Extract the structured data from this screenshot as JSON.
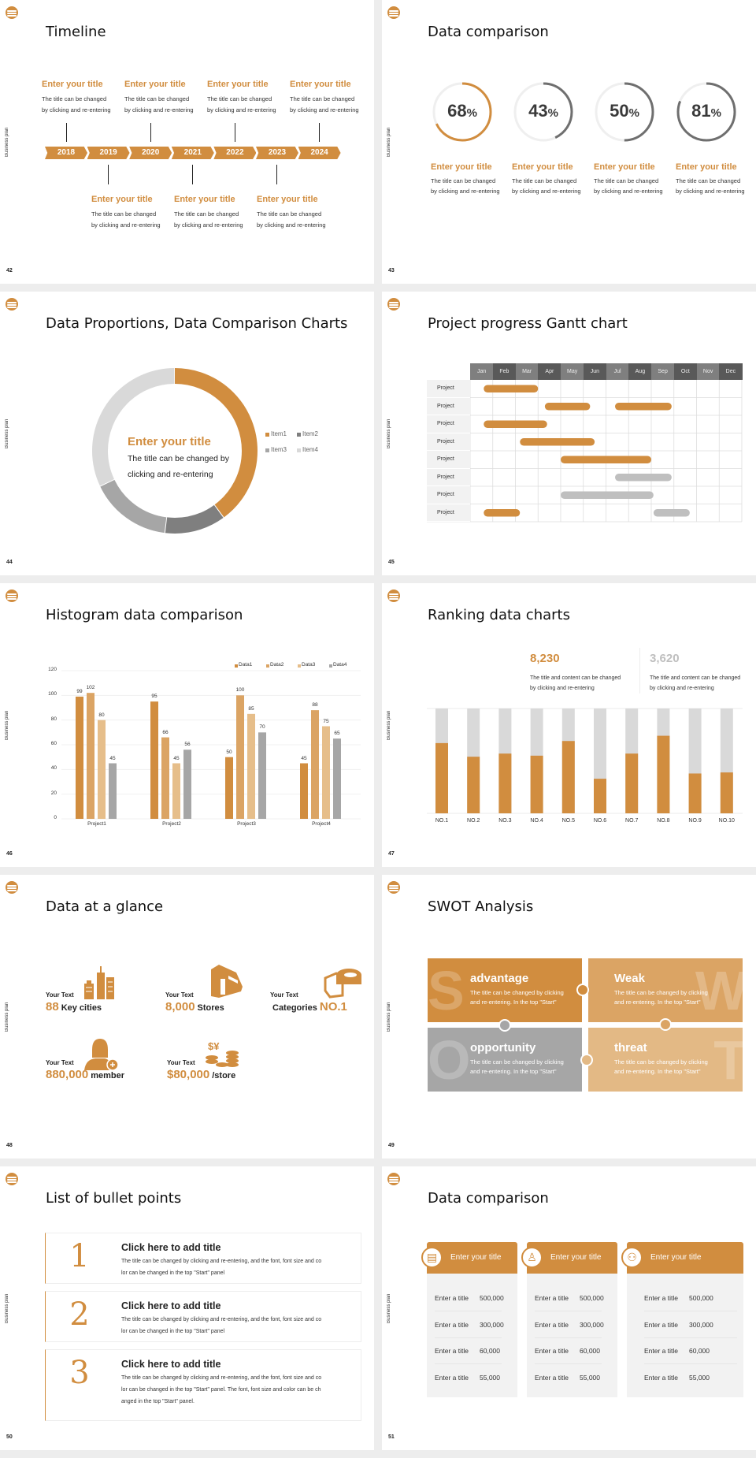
{
  "common": {
    "side_label": "Business plan",
    "accent": "#D18D3F",
    "gray": "#A6A6A6"
  },
  "slides": [
    {
      "page": "42",
      "title": "Timeline",
      "years": [
        "2018",
        "2019",
        "2020",
        "2021",
        "2022",
        "2023",
        "2024"
      ],
      "top_items": [
        {
          "title": "Enter your title",
          "line1": "The title can be changed",
          "line2": "by clicking and re-entering"
        },
        {
          "title": "Enter your title",
          "line1": "The title can be changed",
          "line2": "by clicking and re-entering"
        },
        {
          "title": "Enter your title",
          "line1": "The title can be changed",
          "line2": "by clicking and re-entering"
        },
        {
          "title": "Enter your title",
          "line1": "The title can be changed",
          "line2": "by clicking and re-entering"
        }
      ],
      "bottom_items": [
        {
          "title": "Enter your title",
          "line1": "The title can be changed",
          "line2": "by clicking and re-entering"
        },
        {
          "title": "Enter your title",
          "line1": "The title can be changed",
          "line2": "by clicking and re-entering"
        },
        {
          "title": "Enter your title",
          "line1": "The title can be changed",
          "line2": "by clicking and re-entering"
        }
      ]
    },
    {
      "page": "43",
      "title": "Data comparison",
      "gauges": [
        {
          "value": 68,
          "num": "68",
          "unit": "%",
          "color": "#D18D3F",
          "title": "Enter your title",
          "line1": "The title can be changed",
          "line2": "by clicking and re-entering"
        },
        {
          "value": 43,
          "num": "43",
          "unit": "%",
          "color": "#6F6F6F",
          "title": "Enter your title",
          "line1": "The title can be changed",
          "line2": "by clicking and re-entering"
        },
        {
          "value": 50,
          "num": "50",
          "unit": "%",
          "color": "#6F6F6F",
          "title": "Enter your title",
          "line1": "The title can be changed",
          "line2": "by clicking and re-entering"
        },
        {
          "value": 81,
          "num": "81",
          "unit": "%",
          "color": "#6F6F6F",
          "title": "Enter your title",
          "line1": "The title can be changed",
          "line2": "by clicking and re-entering"
        }
      ]
    },
    {
      "page": "44",
      "title": "Data Proportions, Data Comparison Charts",
      "center_title": "Enter your title",
      "center_line1": "The title can be changed by",
      "center_line2": "clicking and re-entering"
    },
    {
      "page": "45",
      "title": "Project progress Gantt chart"
    },
    {
      "page": "46",
      "title": "Histogram data comparison"
    },
    {
      "page": "47",
      "title": "Ranking data charts",
      "stats": [
        {
          "value": "8,230",
          "color": "#D18D3F",
          "line1": "The title and content can be changed",
          "line2": "by clicking and re-entering"
        },
        {
          "value": "3,620",
          "color": "#BFBFBF",
          "line1": "The title and content can be changed",
          "line2": "by clicking and re-entering"
        }
      ]
    },
    {
      "page": "48",
      "title": "Data at a glance",
      "items": [
        {
          "label": "Your Text",
          "num": "88",
          "unit": "Key cities",
          "icon": "buildings-icon"
        },
        {
          "label": "Your Text",
          "num": "8,000",
          "unit": "Stores",
          "icon": "store-icon"
        },
        {
          "label": "Your Text",
          "num": "NO.1",
          "unit": "Categories",
          "icon": "cheese-icon"
        },
        {
          "label": "Your Text",
          "num": "880,000",
          "unit": "member",
          "icon": "add-member-icon"
        },
        {
          "label": "Your Text",
          "num": "$80,000",
          "unit": "/store",
          "icon": "coins-icon"
        }
      ]
    },
    {
      "page": "49",
      "title": "SWOT Analysis",
      "quadrants": [
        {
          "letter": "S",
          "title": "advantage",
          "line1": "The title can be changed by clicking",
          "line2": "and re-entering. In the top \"Start\"",
          "color": "#D18D3F"
        },
        {
          "letter": "W",
          "title": "Weak",
          "line1": "The title can be changed by clicking",
          "line2": "and re-entering. In the top \"Start\"",
          "color": "#DBA464"
        },
        {
          "letter": "O",
          "title": "opportunity",
          "line1": "The title can be changed by clicking",
          "line2": "and re-entering. In the top \"Start\"",
          "color": "#A6A6A6"
        },
        {
          "letter": "T",
          "title": "threat",
          "line1": "The title can be changed by clicking",
          "line2": "and re-entering. In the top \"Start\"",
          "color": "#E3B985"
        }
      ]
    },
    {
      "page": "50",
      "title": "List of bullet points",
      "bullets": [
        {
          "num": "1",
          "title": "Click here to add title",
          "lines": [
            "The title can be changed by clicking and re-entering, and the font, font size and co",
            "lor can be changed in the top \"Start\" panel"
          ]
        },
        {
          "num": "2",
          "title": "Click here to add title",
          "lines": [
            "The title can be changed by clicking and re-entering, and the font, font size and co",
            "lor can be changed in the top \"Start\" panel"
          ]
        },
        {
          "num": "3",
          "title": "Click here to add title",
          "lines": [
            "The title can be changed by clicking and re-entering, and the font, font size and co",
            "lor can be changed in the top \"Start\" panel. The font, font size and color can be ch",
            "anged in the top \"Start\" panel."
          ]
        }
      ]
    },
    {
      "page": "51",
      "title": "Data comparison",
      "cards": [
        {
          "title": "Enter your title",
          "icon": "contact-card-icon",
          "rows": [
            [
              "Enter a title",
              "500,000"
            ],
            [
              "Enter a title",
              "300,000"
            ],
            [
              "Enter a title",
              "60,000"
            ],
            [
              "Enter a title",
              "55,000"
            ]
          ]
        },
        {
          "title": "Enter your title",
          "icon": "add-user-icon",
          "rows": [
            [
              "Enter a title",
              "500,000"
            ],
            [
              "Enter a title",
              "300,000"
            ],
            [
              "Enter a title",
              "60,000"
            ],
            [
              "Enter a title",
              "55,000"
            ]
          ]
        },
        {
          "title": "Enter your title",
          "icon": "users-icon",
          "rows": [
            [
              "Enter a title",
              "500,000"
            ],
            [
              "Enter a title",
              "300,000"
            ],
            [
              "Enter a title",
              "60,000"
            ],
            [
              "Enter a title",
              "55,000"
            ]
          ]
        }
      ]
    }
  ],
  "chart_data": [
    {
      "type": "pie",
      "donut": true,
      "categories": [
        "Item1",
        "Item2",
        "Item3",
        "Item4"
      ],
      "values": [
        40,
        12,
        16,
        32
      ],
      "colors": [
        "#D18D3F",
        "#7F7F7F",
        "#A6A6A6",
        "#D9D9D9"
      ],
      "legend": "right"
    },
    {
      "type": "bar",
      "subtype": "gantt",
      "categories": [
        "Jan",
        "Feb",
        "Mar",
        "Apr",
        "May",
        "Jun",
        "Jul",
        "Aug",
        "Sep",
        "Oct",
        "Nov",
        "Dec"
      ],
      "rows": [
        "Project",
        "Project",
        "Project",
        "Project",
        "Project",
        "Project",
        "Project",
        "Project"
      ],
      "tasks": [
        {
          "row": 0,
          "start": 0.6,
          "end": 3.0,
          "status": "active"
        },
        {
          "row": 1,
          "start": 3.3,
          "end": 5.3,
          "status": "active"
        },
        {
          "row": 1,
          "start": 6.4,
          "end": 8.9,
          "status": "active"
        },
        {
          "row": 2,
          "start": 0.6,
          "end": 3.4,
          "status": "active"
        },
        {
          "row": 3,
          "start": 2.2,
          "end": 5.5,
          "status": "active"
        },
        {
          "row": 4,
          "start": 4.0,
          "end": 8.0,
          "status": "active"
        },
        {
          "row": 5,
          "start": 6.4,
          "end": 8.9,
          "status": "planned"
        },
        {
          "row": 6,
          "start": 4.0,
          "end": 8.1,
          "status": "planned"
        },
        {
          "row": 7,
          "start": 0.6,
          "end": 2.2,
          "status": "active"
        },
        {
          "row": 7,
          "start": 8.1,
          "end": 9.7,
          "status": "planned"
        }
      ],
      "colors": {
        "active": "#D18D3F",
        "planned": "#BFBFBF"
      }
    },
    {
      "type": "bar",
      "categories": [
        "Project1",
        "Project2",
        "Project3",
        "Project4"
      ],
      "series": [
        {
          "name": "Data1",
          "values": [
            99,
            95,
            50,
            45
          ],
          "color": "#D18D3F"
        },
        {
          "name": "Data2",
          "values": [
            102,
            66,
            100,
            88
          ],
          "color": "#DBA464"
        },
        {
          "name": "Data3",
          "values": [
            80,
            45,
            85,
            75
          ],
          "color": "#E6BE8A"
        },
        {
          "name": "Data4",
          "values": [
            45,
            56,
            70,
            65
          ],
          "color": "#A6A6A6"
        }
      ],
      "ylim": [
        0,
        120
      ],
      "yticks": [
        0,
        20,
        40,
        60,
        80,
        100,
        120
      ],
      "grid": true,
      "legend": "top-right",
      "data_labels": true
    },
    {
      "type": "bar",
      "stacked_percent": true,
      "categories": [
        "NO.1",
        "NO.2",
        "NO.3",
        "NO.4",
        "NO.5",
        "NO.6",
        "NO.7",
        "NO.8",
        "NO.9",
        "NO.10"
      ],
      "values": [
        0.67,
        0.54,
        0.57,
        0.55,
        0.69,
        0.33,
        0.57,
        0.74,
        0.38,
        0.39
      ],
      "colors": [
        "#D18D3F",
        "#D9D9D9"
      ]
    }
  ]
}
